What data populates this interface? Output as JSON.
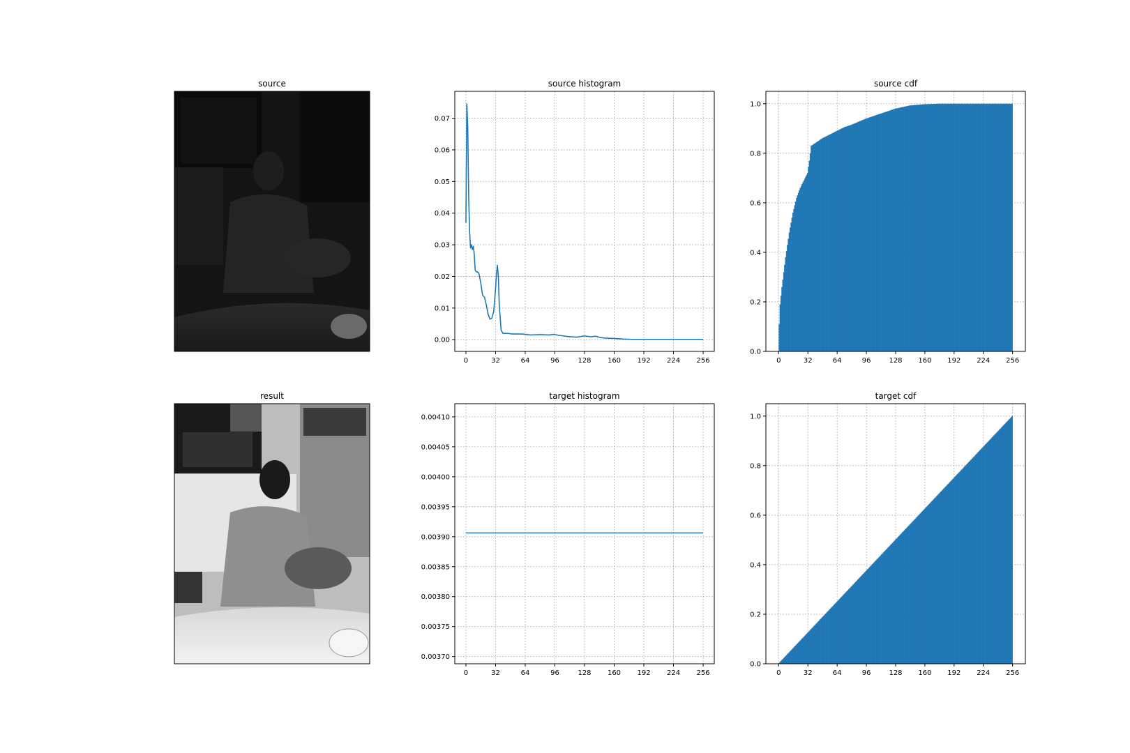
{
  "figure": {
    "panels": [
      {
        "id": "source",
        "title": "source",
        "kind": "photo",
        "tone": "dark"
      },
      {
        "id": "result",
        "title": "result",
        "kind": "photo",
        "tone": "equalized"
      }
    ]
  },
  "colors": {
    "series": "#1f77b4",
    "grid": "#b0b0b0"
  },
  "chart_data": [
    {
      "id": "source-histogram",
      "type": "line",
      "title": "source histogram",
      "xlabel": "",
      "ylabel": "",
      "xlim": [
        -12,
        268
      ],
      "ylim": [
        -0.0037,
        0.0785
      ],
      "xticks": [
        0,
        32,
        64,
        96,
        128,
        160,
        192,
        224,
        256
      ],
      "yticks": [
        0.0,
        0.01,
        0.02,
        0.03,
        0.04,
        0.05,
        0.06,
        0.07
      ],
      "ytick_labels": [
        "0.00",
        "0.01",
        "0.02",
        "0.03",
        "0.04",
        "0.05",
        "0.06",
        "0.07"
      ],
      "grid": true,
      "series": [
        {
          "x": [
            0,
            1,
            2,
            3,
            4,
            5,
            6,
            7,
            8,
            9,
            10,
            11,
            12,
            14,
            16,
            18,
            20,
            22,
            24,
            26,
            28,
            30,
            32,
            33,
            34,
            35,
            36,
            38,
            40,
            45,
            50,
            60,
            70,
            80,
            90,
            95,
            100,
            110,
            120,
            128,
            135,
            140,
            145,
            150,
            160,
            170,
            180,
            200,
            220,
            256
          ],
          "y": [
            0.037,
            0.0745,
            0.067,
            0.045,
            0.034,
            0.029,
            0.03,
            0.0285,
            0.0295,
            0.027,
            0.022,
            0.0215,
            0.0215,
            0.021,
            0.018,
            0.014,
            0.0135,
            0.011,
            0.008,
            0.0065,
            0.0068,
            0.009,
            0.016,
            0.021,
            0.0235,
            0.02,
            0.011,
            0.003,
            0.002,
            0.002,
            0.0018,
            0.0018,
            0.0015,
            0.0016,
            0.0015,
            0.0017,
            0.0014,
            0.001,
            0.0008,
            0.0012,
            0.0009,
            0.0011,
            0.0007,
            0.0005,
            0.0004,
            0.0002,
            0.0001,
            0.0001,
            0.0001,
            0.0001
          ]
        }
      ]
    },
    {
      "id": "source-cdf",
      "type": "area",
      "title": "source cdf",
      "xlabel": "",
      "ylabel": "",
      "xlim": [
        -14,
        270
      ],
      "ylim": [
        0.0,
        1.05
      ],
      "xticks": [
        0,
        32,
        64,
        96,
        128,
        160,
        192,
        224,
        256
      ],
      "yticks": [
        0.0,
        0.2,
        0.4,
        0.6,
        0.8,
        1.0
      ],
      "ytick_labels": [
        "0.0",
        "0.2",
        "0.4",
        "0.6",
        "0.8",
        "1.0"
      ],
      "grid": true,
      "series": [
        {
          "x": [
            0,
            1,
            2,
            4,
            6,
            8,
            10,
            12,
            16,
            20,
            24,
            28,
            32,
            34,
            36,
            40,
            48,
            56,
            64,
            72,
            80,
            96,
            112,
            128,
            144,
            160,
            176,
            192,
            224,
            256
          ],
          "y": [
            0.03,
            0.11,
            0.19,
            0.26,
            0.32,
            0.38,
            0.43,
            0.48,
            0.56,
            0.62,
            0.66,
            0.69,
            0.72,
            0.77,
            0.83,
            0.84,
            0.86,
            0.875,
            0.89,
            0.905,
            0.915,
            0.94,
            0.96,
            0.98,
            0.993,
            0.998,
            1.0,
            1.0,
            1.0,
            1.0
          ]
        }
      ]
    },
    {
      "id": "target-histogram",
      "type": "line",
      "title": "target histogram",
      "xlabel": "",
      "ylabel": "",
      "xlim": [
        -12,
        268
      ],
      "ylim": [
        0.003688,
        0.004122
      ],
      "xticks": [
        0,
        32,
        64,
        96,
        128,
        160,
        192,
        224,
        256
      ],
      "yticks": [
        0.0037,
        0.00375,
        0.0038,
        0.00385,
        0.0039,
        0.00395,
        0.004,
        0.00405,
        0.0041
      ],
      "ytick_labels": [
        "0.00370",
        "0.00375",
        "0.00380",
        "0.00385",
        "0.00390",
        "0.00395",
        "0.00400",
        "0.00405",
        "0.00410"
      ],
      "grid": true,
      "series": [
        {
          "x": [
            0,
            256
          ],
          "y": [
            0.0039063,
            0.0039063
          ]
        }
      ]
    },
    {
      "id": "target-cdf",
      "type": "area",
      "title": "target cdf",
      "xlabel": "",
      "ylabel": "",
      "xlim": [
        -14,
        270
      ],
      "ylim": [
        0.0,
        1.05
      ],
      "xticks": [
        0,
        32,
        64,
        96,
        128,
        160,
        192,
        224,
        256
      ],
      "yticks": [
        0.0,
        0.2,
        0.4,
        0.6,
        0.8,
        1.0
      ],
      "ytick_labels": [
        "0.0",
        "0.2",
        "0.4",
        "0.6",
        "0.8",
        "1.0"
      ],
      "grid": true,
      "series": [
        {
          "x": [
            0,
            256
          ],
          "y": [
            0.0,
            1.0
          ]
        }
      ]
    }
  ]
}
